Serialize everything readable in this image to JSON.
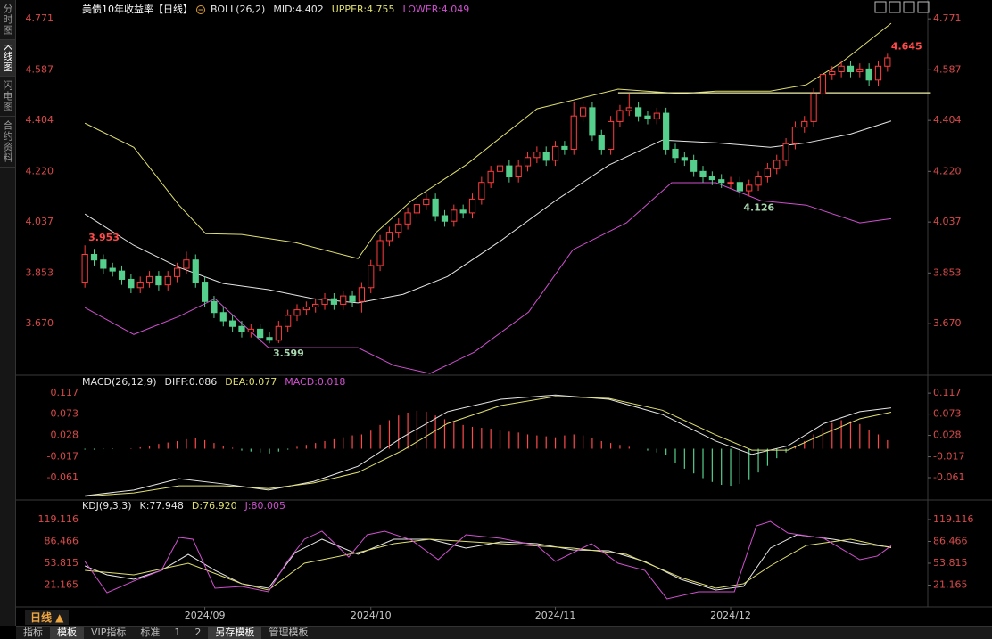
{
  "sidebar": [
    "分时图",
    "K线图",
    "闪电图",
    "合约资料"
  ],
  "footer": {
    "period": "日线 ▲",
    "tabs": [
      "指标",
      "模板",
      "VIP指标",
      "标准",
      "1",
      "2",
      "另存模板",
      "管理模板"
    ]
  },
  "chart_data": [
    {
      "type": "candlestick",
      "title": "美债10年收益率【日线】",
      "legend": [
        {
          "text": "BOLL(26,2)",
          "color": "#e6e6e6"
        },
        {
          "text": "MID:4.402",
          "color": "#e6e6e6"
        },
        {
          "text": "UPPER:4.755",
          "color": "#e0e070"
        },
        {
          "text": "LOWER:4.049",
          "color": "#d050d0"
        }
      ],
      "categories": [
        null,
        null,
        null,
        null,
        null,
        null,
        null,
        null,
        null,
        null,
        null,
        null,
        null,
        "2024/09",
        null,
        null,
        null,
        null,
        null,
        null,
        null,
        null,
        null,
        null,
        null,
        null,
        null,
        null,
        null,
        null,
        null,
        "2024/10",
        null,
        null,
        null,
        null,
        null,
        null,
        null,
        null,
        null,
        null,
        null,
        null,
        null,
        null,
        null,
        null,
        null,
        null,
        null,
        "2024/11",
        null,
        null,
        null,
        null,
        null,
        null,
        null,
        null,
        null,
        null,
        null,
        null,
        null,
        null,
        null,
        null,
        null,
        null,
        "2024/12",
        null,
        null,
        null,
        null,
        null,
        null,
        null,
        null,
        null,
        null,
        null,
        null,
        null,
        null,
        null,
        null,
        null
      ],
      "open": [
        3.82,
        3.92,
        3.9,
        3.87,
        3.86,
        3.83,
        3.8,
        3.82,
        3.84,
        3.81,
        3.84,
        3.87,
        3.9,
        3.82,
        3.75,
        3.71,
        3.68,
        3.66,
        3.64,
        3.65,
        3.62,
        3.61,
        3.66,
        3.7,
        3.72,
        3.73,
        3.74,
        3.76,
        3.74,
        3.77,
        3.75,
        3.8,
        3.88,
        3.97,
        4.0,
        4.03,
        4.07,
        4.1,
        4.12,
        4.06,
        4.04,
        4.08,
        4.07,
        4.12,
        4.18,
        4.22,
        4.24,
        4.2,
        4.24,
        4.27,
        4.29,
        4.26,
        4.31,
        4.3,
        4.42,
        4.45,
        4.35,
        4.3,
        4.4,
        4.44,
        4.45,
        4.42,
        4.41,
        4.43,
        4.3,
        4.27,
        4.26,
        4.22,
        4.2,
        4.19,
        4.18,
        4.18,
        4.15,
        4.17,
        4.2,
        4.23,
        4.26,
        4.32,
        4.38,
        4.4,
        4.5,
        4.57,
        4.58,
        4.6,
        4.58,
        4.59,
        4.55,
        4.6
      ],
      "high": [
        3.953,
        3.94,
        3.92,
        3.89,
        3.88,
        3.85,
        3.84,
        3.86,
        3.86,
        3.86,
        3.89,
        3.93,
        3.92,
        3.84,
        3.77,
        3.73,
        3.7,
        3.68,
        3.67,
        3.67,
        3.64,
        3.68,
        3.72,
        3.74,
        3.75,
        3.76,
        3.78,
        3.78,
        3.79,
        3.79,
        3.82,
        3.9,
        3.99,
        4.02,
        4.05,
        4.09,
        4.12,
        4.14,
        4.14,
        4.08,
        4.1,
        4.1,
        4.14,
        4.2,
        4.24,
        4.26,
        4.26,
        4.26,
        4.29,
        4.31,
        4.31,
        4.33,
        4.33,
        4.47,
        4.47,
        4.47,
        4.37,
        4.42,
        4.46,
        4.5,
        4.47,
        4.44,
        4.45,
        4.45,
        4.32,
        4.29,
        4.28,
        4.24,
        4.22,
        4.21,
        4.2,
        4.2,
        4.19,
        4.22,
        4.25,
        4.28,
        4.34,
        4.4,
        4.42,
        4.52,
        4.59,
        4.6,
        4.62,
        4.62,
        4.61,
        4.61,
        4.62,
        4.645
      ],
      "low": [
        3.8,
        3.88,
        3.85,
        3.84,
        3.81,
        3.78,
        3.78,
        3.8,
        3.79,
        3.79,
        3.82,
        3.85,
        3.8,
        3.73,
        3.69,
        3.66,
        3.64,
        3.62,
        3.62,
        3.6,
        3.599,
        3.6,
        3.64,
        3.68,
        3.7,
        3.71,
        3.72,
        3.72,
        3.72,
        3.73,
        3.71,
        3.78,
        3.86,
        3.95,
        3.98,
        4.01,
        4.05,
        4.08,
        4.04,
        4.02,
        4.02,
        4.05,
        4.05,
        4.1,
        4.16,
        4.2,
        4.18,
        4.18,
        4.22,
        4.25,
        4.24,
        4.24,
        4.28,
        4.28,
        4.4,
        4.33,
        4.28,
        4.28,
        4.38,
        4.42,
        4.4,
        4.39,
        4.39,
        4.28,
        4.25,
        4.24,
        4.2,
        4.18,
        4.17,
        4.16,
        4.16,
        4.126,
        4.13,
        4.15,
        4.18,
        4.21,
        4.24,
        4.3,
        4.36,
        4.38,
        4.48,
        4.55,
        4.56,
        4.56,
        4.56,
        4.53,
        4.53,
        4.58
      ],
      "close": [
        3.92,
        3.9,
        3.87,
        3.86,
        3.83,
        3.8,
        3.82,
        3.84,
        3.81,
        3.84,
        3.87,
        3.9,
        3.82,
        3.75,
        3.71,
        3.68,
        3.66,
        3.64,
        3.65,
        3.62,
        3.61,
        3.66,
        3.7,
        3.72,
        3.73,
        3.74,
        3.76,
        3.74,
        3.77,
        3.75,
        3.8,
        3.88,
        3.97,
        4.0,
        4.03,
        4.07,
        4.1,
        4.12,
        4.06,
        4.04,
        4.08,
        4.07,
        4.12,
        4.18,
        4.22,
        4.24,
        4.2,
        4.24,
        4.27,
        4.29,
        4.26,
        4.31,
        4.3,
        4.42,
        4.45,
        4.35,
        4.3,
        4.4,
        4.44,
        4.45,
        4.42,
        4.41,
        4.43,
        4.3,
        4.27,
        4.26,
        4.22,
        4.2,
        4.19,
        4.18,
        4.18,
        4.15,
        4.17,
        4.2,
        4.23,
        4.26,
        4.32,
        4.38,
        4.4,
        4.5,
        4.57,
        4.58,
        4.6,
        4.58,
        4.59,
        4.55,
        4.6,
        4.63
      ],
      "up_color": "#ff3d3d",
      "down_color": "#54d08c",
      "labeled_points": [
        {
          "field": "high",
          "index": 0,
          "color": "#ff4a4a"
        },
        {
          "field": "low",
          "index": 20,
          "color": "#a8d8b0"
        },
        {
          "field": "low",
          "index": 71,
          "color": "#a8d8b0"
        },
        {
          "field": "high",
          "index": 87,
          "color": "#ff4a4a"
        }
      ],
      "series": [
        {
          "color": "#e0e070",
          "x": [
            0,
            5.3,
            10.2,
            13.1,
            17,
            22.8,
            29.6,
            31.6,
            35.4,
            41.3,
            49,
            57.8,
            64.6,
            68.4,
            74.3,
            78.2,
            82,
            87.4
          ],
          "values": [
            4.394,
            4.307,
            4.098,
            3.995,
            3.992,
            3.963,
            3.905,
            4.0,
            4.114,
            4.243,
            4.446,
            4.517,
            4.501,
            4.51,
            4.51,
            4.533,
            4.613,
            4.755
          ]
        },
        {
          "color": "#e6e6e6",
          "x": [
            0,
            5.3,
            10.2,
            15,
            19.9,
            24.8,
            29.6,
            34.5,
            39.3,
            45.1,
            51,
            56.8,
            62.6,
            68.4,
            74.3,
            78.2,
            83,
            87.4
          ],
          "values": [
            4.066,
            3.953,
            3.873,
            3.815,
            3.793,
            3.76,
            3.745,
            3.776,
            3.84,
            3.97,
            4.114,
            4.243,
            4.333,
            4.323,
            4.307,
            4.323,
            4.355,
            4.402
          ]
        },
        {
          "color": "#d050d0",
          "x": [
            0,
            5.3,
            10.2,
            14.1,
            19.9,
            29.6,
            33.5,
            37.4,
            42.2,
            48.1,
            52.9,
            58.7,
            63.6,
            68.4,
            73.3,
            78.2,
            84,
            87.4
          ],
          "values": [
            3.728,
            3.631,
            3.696,
            3.76,
            3.583,
            3.583,
            3.519,
            3.49,
            3.567,
            3.712,
            3.937,
            4.034,
            4.179,
            4.179,
            4.114,
            4.098,
            4.034,
            4.049
          ]
        }
      ],
      "reference_line": {
        "value": 4.504,
        "x": [
          57.8,
          91.7
        ],
        "color": "#f0f0a8"
      },
      "ylim": [
        3.487,
        4.823
      ],
      "yticks": [
        {
          "value": 3.67,
          "label": "3.670"
        },
        3.853,
        4.037,
        {
          "value": 4.22,
          "label": "4.220"
        },
        4.404,
        4.587,
        4.771
      ]
    },
    {
      "type": "macd",
      "legend": [
        {
          "text": "MACD(26,12,9)",
          "color": "#e6e6e6"
        },
        {
          "text": "DIFF:0.086",
          "color": "#e6e6e6"
        },
        {
          "text": "DEA:0.077",
          "color": "#e0e070"
        },
        {
          "text": "MACD:0.018",
          "color": "#d050d0"
        }
      ],
      "values": [
        -0.002,
        -0.002,
        -0.001,
        -0.001,
        0,
        0.001,
        0.003,
        0.006,
        0.01,
        0.013,
        0.016,
        0.02,
        0.022,
        0.018,
        0.012,
        0.006,
        0.002,
        -0.004,
        -0.006,
        -0.008,
        -0.01,
        -0.006,
        -0.002,
        0.004,
        0.008,
        0.012,
        0.016,
        0.02,
        0.024,
        0.028,
        0.03,
        0.038,
        0.05,
        0.06,
        0.07,
        0.076,
        0.08,
        0.078,
        0.07,
        0.062,
        0.056,
        0.05,
        0.046,
        0.044,
        0.042,
        0.04,
        0.036,
        0.034,
        0.03,
        0.028,
        0.026,
        0.024,
        0.028,
        0.03,
        0.028,
        0.022,
        0.016,
        0.012,
        0.008,
        0.004,
        0,
        -0.004,
        -0.008,
        -0.014,
        -0.03,
        -0.042,
        -0.052,
        -0.062,
        -0.07,
        -0.076,
        -0.078,
        -0.074,
        -0.066,
        -0.05,
        -0.036,
        -0.02,
        -0.008,
        0.004,
        0.016,
        0.03,
        0.044,
        0.054,
        0.06,
        0.058,
        0.052,
        0.04,
        0.03,
        0.018
      ],
      "up_color": "#ff4a4a",
      "down_color": "#54d08c",
      "series": [
        {
          "color": "#e6e6e6",
          "x": [
            0,
            5.3,
            10.2,
            15,
            19.9,
            24.8,
            29.6,
            34.5,
            39.3,
            45.1,
            51,
            56.8,
            62.6,
            68.4,
            72.3,
            76.2,
            80.1,
            84,
            87.4
          ],
          "values": [
            -0.099,
            -0.087,
            -0.063,
            -0.074,
            -0.087,
            -0.069,
            -0.037,
            0.025,
            0.078,
            0.104,
            0.113,
            0.104,
            0.072,
            0.016,
            -0.012,
            0.006,
            0.053,
            0.078,
            0.086
          ]
        },
        {
          "color": "#e0e070",
          "x": [
            0,
            5.3,
            10.2,
            15,
            19.9,
            24.8,
            29.6,
            34.5,
            39.3,
            45.1,
            51,
            56.8,
            62.6,
            68.4,
            72.3,
            76.2,
            80.1,
            84,
            87.4
          ],
          "values": [
            -0.1,
            -0.093,
            -0.078,
            -0.078,
            -0.084,
            -0.072,
            -0.05,
            -0.003,
            0.053,
            0.091,
            0.11,
            0.106,
            0.081,
            0.029,
            -0.003,
            -0.003,
            0.031,
            0.063,
            0.077
          ]
        }
      ],
      "ylim": [
        -0.106,
        0.151
      ],
      "yticks": [
        0.117,
        0.073,
        0.028,
        -0.017,
        -0.061
      ]
    },
    {
      "type": "line",
      "legend": [
        {
          "text": "KDJ(9,3,3)",
          "color": "#e6e6e6"
        },
        {
          "text": "K:77.948",
          "color": "#e6e6e6"
        },
        {
          "text": "D:76.920",
          "color": "#e0e070"
        },
        {
          "text": "J:80.005",
          "color": "#d050d0"
        }
      ],
      "series": [
        {
          "color": "#e6e6e6",
          "x": [
            0,
            2.4,
            5.3,
            8.3,
            11.2,
            14.1,
            17,
            19.9,
            22.8,
            25.7,
            29.6,
            33.5,
            37.4,
            41.3,
            45.1,
            49,
            52.9,
            56.8,
            60.7,
            64.6,
            68.4,
            71.4,
            74.3,
            77.2,
            81.1,
            84,
            87.4
          ],
          "values": [
            49.8,
            36.5,
            29.8,
            43.1,
            67.1,
            43.1,
            23.2,
            16.5,
            69.8,
            89.8,
            67.1,
            89.8,
            89.8,
            76.5,
            85.8,
            83.1,
            73.8,
            72.5,
            56.5,
            29.8,
            13.8,
            19.2,
            76.5,
            96.5,
            89.8,
            83.1,
            77.948
          ]
        },
        {
          "color": "#e0e070",
          "x": [
            0,
            5.3,
            11.2,
            17,
            19.9,
            23.8,
            29.6,
            33.5,
            37.4,
            45.1,
            52.9,
            58.7,
            64.6,
            68.4,
            71.4,
            74.3,
            78.2,
            83,
            87.4
          ],
          "values": [
            43.1,
            36.5,
            53.8,
            23.2,
            13.8,
            53.8,
            69.8,
            83.1,
            89.8,
            83.1,
            76.5,
            67.1,
            32.5,
            16.5,
            23.2,
            49.8,
            80.5,
            89.8,
            76.92
          ]
        },
        {
          "color": "#d050d0",
          "x": [
            0,
            2.4,
            5.3,
            8.3,
            10.2,
            11.7,
            14.1,
            17,
            19.9,
            21.8,
            23.8,
            25.7,
            28.6,
            30.6,
            32.5,
            35.4,
            38.3,
            41.3,
            45.1,
            49,
            51,
            54.9,
            57.8,
            60.7,
            63.1,
            66.5,
            70.4,
            72.8,
            74.3,
            76.2,
            80.1,
            84,
            85.9,
            87.4
          ],
          "values": [
            56.5,
            9.8,
            27.2,
            43.1,
            92.5,
            89.8,
            16.5,
            19.2,
            11.2,
            53.8,
            89.8,
            101.8,
            63.1,
            96.5,
            101.8,
            88.5,
            59.1,
            96.5,
            91.1,
            80.5,
            56.5,
            83.1,
            53.8,
            43.1,
            0.5,
            11.2,
            11.2,
            109.8,
            116.4,
            99.1,
            91.1,
            59.1,
            64.5,
            80.005
          ]
        }
      ],
      "ylim": [
        -10.2,
        147.1
      ],
      "yticks": [
        119.116,
        86.466,
        53.815,
        21.165
      ]
    }
  ]
}
